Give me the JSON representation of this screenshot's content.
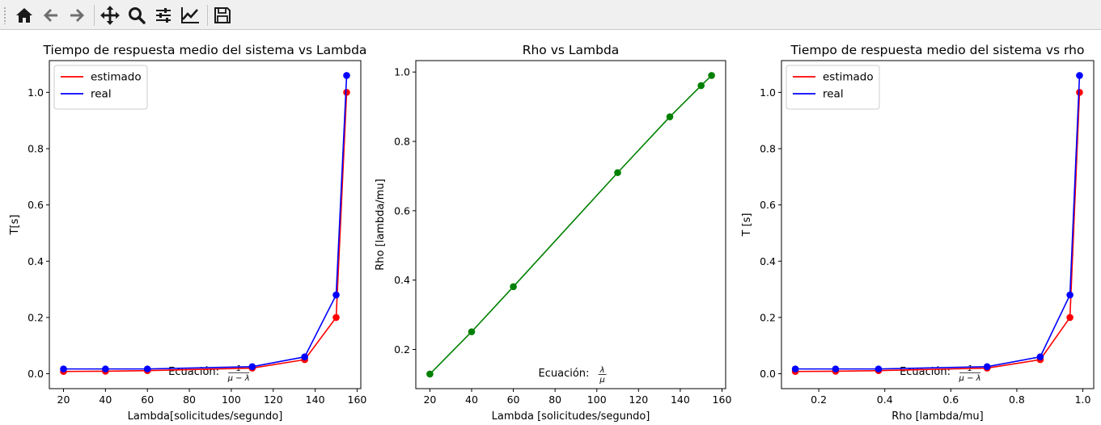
{
  "toolbar": {
    "buttons": [
      {
        "name": "home-icon",
        "icon": "home"
      },
      {
        "name": "back-icon",
        "icon": "arrow-left"
      },
      {
        "name": "forward-icon",
        "icon": "arrow-right"
      },
      {
        "name": "pan-icon",
        "icon": "move"
      },
      {
        "name": "zoom-icon",
        "icon": "magnifier"
      },
      {
        "name": "configure-subplots-icon",
        "icon": "sliders"
      },
      {
        "name": "edit-axis-icon",
        "icon": "line-chart"
      },
      {
        "name": "save-icon",
        "icon": "floppy-disk"
      }
    ]
  },
  "colors": {
    "estimado": "#ff0000",
    "real": "#0000ff",
    "rho": "#008000"
  },
  "chart_data": [
    {
      "type": "line",
      "title": "Tiempo de respuesta medio del sistema vs Lambda",
      "xlabel": "Lambda[solicitudes/segundo]",
      "ylabel": "T[s]",
      "xlim": [
        13.25,
        161.75
      ],
      "ylim": [
        -0.053,
        1.113
      ],
      "xticks": [
        20,
        40,
        60,
        80,
        100,
        120,
        140,
        160
      ],
      "yticks": [
        0.0,
        0.2,
        0.4,
        0.6,
        0.8,
        1.0
      ],
      "xtick_labels": [
        "20",
        "40",
        "60",
        "80",
        "100",
        "120",
        "140",
        "160"
      ],
      "ytick_labels": [
        "0.0",
        "0.2",
        "0.4",
        "0.6",
        "0.8",
        "1.0"
      ],
      "legend": "upper-left",
      "annotation": {
        "text": "Ecuación:",
        "num": "1",
        "den": "μ − λ",
        "x": 70,
        "y": 0.008
      },
      "series": [
        {
          "name": "estimado",
          "color": "#ff0000",
          "x": [
            20,
            40,
            60,
            110,
            135,
            150,
            155
          ],
          "y": [
            0.008,
            0.009,
            0.011,
            0.02,
            0.05,
            0.2,
            1.0
          ]
        },
        {
          "name": "real",
          "color": "#0000ff",
          "x": [
            20,
            40,
            60,
            110,
            135,
            150,
            155
          ],
          "y": [
            0.017,
            0.017,
            0.017,
            0.025,
            0.06,
            0.28,
            1.06
          ]
        }
      ]
    },
    {
      "type": "line",
      "title": "Rho vs Lambda",
      "xlabel": "Lambda [solicitudes/segundo]",
      "ylabel": "Rho  [lambda/mu]",
      "xlim": [
        13.25,
        161.75
      ],
      "ylim": [
        0.087,
        1.033
      ],
      "xticks": [
        20,
        40,
        60,
        80,
        100,
        120,
        140,
        160
      ],
      "yticks": [
        0.2,
        0.4,
        0.6,
        0.8,
        1.0
      ],
      "xtick_labels": [
        "20",
        "40",
        "60",
        "80",
        "100",
        "120",
        "140",
        "160"
      ],
      "ytick_labels": [
        "0.2",
        "0.4",
        "0.6",
        "0.8",
        "1.0"
      ],
      "legend": "none",
      "annotation": {
        "text": "Ecuación:",
        "num": "λ",
        "den": "μ",
        "x": 72,
        "y": 0.131
      },
      "series": [
        {
          "color": "#008000",
          "x": [
            20,
            40,
            60,
            110,
            135,
            150,
            155
          ],
          "y": [
            0.129,
            0.251,
            0.381,
            0.71,
            0.871,
            0.961,
            0.99
          ]
        }
      ]
    },
    {
      "type": "line",
      "title": "Tiempo de respuesta medio del sistema vs rho",
      "xlabel": "Rho  [lambda/mu]",
      "ylabel": "T [s]",
      "xlim": [
        0.087,
        1.033
      ],
      "ylim": [
        -0.053,
        1.113
      ],
      "xticks": [
        0.2,
        0.4,
        0.6,
        0.8,
        1.0
      ],
      "yticks": [
        0.0,
        0.2,
        0.4,
        0.6,
        0.8,
        1.0
      ],
      "xtick_labels": [
        "0.2",
        "0.4",
        "0.6",
        "0.8",
        "1.0"
      ],
      "ytick_labels": [
        "0.0",
        "0.2",
        "0.4",
        "0.6",
        "0.8",
        "1.0"
      ],
      "legend": "upper-left",
      "annotation": {
        "text": "Ecuación:",
        "num": "1",
        "den": "μ − λ",
        "x": 0.445,
        "y": 0.008
      },
      "series": [
        {
          "name": "estimado",
          "color": "#ff0000",
          "x": [
            0.129,
            0.251,
            0.381,
            0.71,
            0.871,
            0.961,
            0.99
          ],
          "y": [
            0.008,
            0.009,
            0.011,
            0.02,
            0.05,
            0.2,
            1.0
          ]
        },
        {
          "name": "real",
          "color": "#0000ff",
          "x": [
            0.129,
            0.251,
            0.381,
            0.71,
            0.871,
            0.961,
            0.99
          ],
          "y": [
            0.017,
            0.017,
            0.017,
            0.025,
            0.06,
            0.28,
            1.06
          ]
        }
      ]
    }
  ]
}
